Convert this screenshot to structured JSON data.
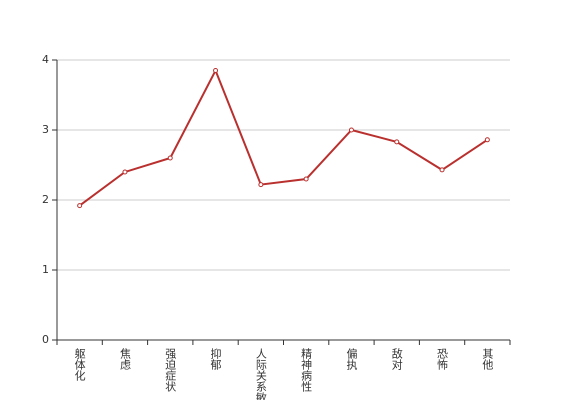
{
  "chart_data": {
    "type": "line",
    "categories": [
      "躯体化",
      "焦虑",
      "强迫症状",
      "抑郁",
      "人际关系敏感",
      "精神病性",
      "偏执",
      "敌对",
      "恐怖",
      "其他"
    ],
    "values": [
      1.92,
      2.4,
      2.6,
      3.85,
      2.22,
      2.3,
      3.0,
      2.83,
      2.43,
      2.86
    ],
    "color": "#b9302e",
    "ylim": [
      0,
      4
    ],
    "yticks": [
      0,
      1,
      2,
      3,
      4
    ],
    "grid": true
  }
}
